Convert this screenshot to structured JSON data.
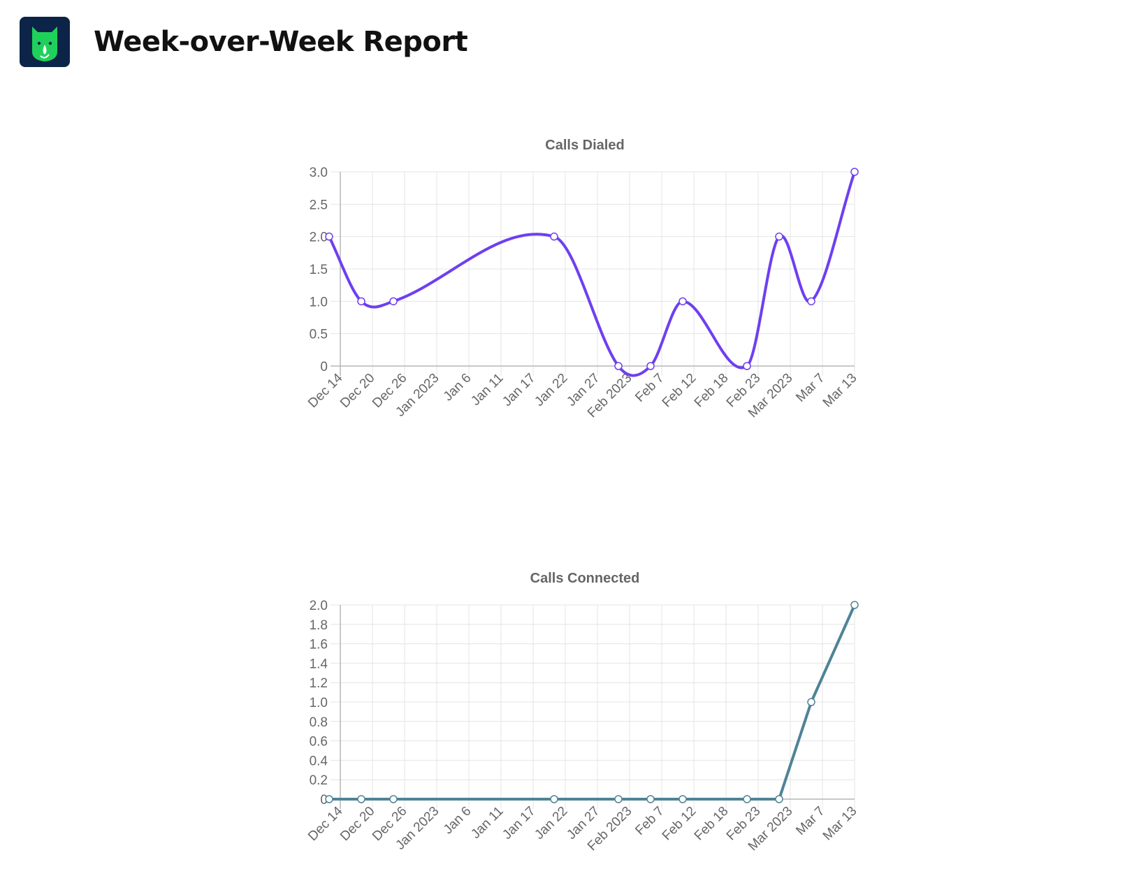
{
  "header": {
    "title": "Week-over-Week Report",
    "logo_icon": "green-mascot-icon"
  },
  "chart_data": [
    {
      "type": "line",
      "title": "Calls Dialed",
      "color": "#6e3ff0",
      "smooth": true,
      "x": [
        "Dec 14",
        "Dec 20",
        "Dec 26",
        "Jan 2023",
        "Jan 6",
        "Jan 11",
        "Jan 17",
        "Jan 22",
        "Jan 27",
        "Feb 2023",
        "Feb 7",
        "Feb 12",
        "Feb 18",
        "Feb 23",
        "Mar 2023",
        "Mar 7",
        "Mar 13"
      ],
      "points": [
        {
          "x": "Dec 14",
          "y": 2
        },
        {
          "x": "Dec 20",
          "y": 1
        },
        {
          "x": "Dec 26",
          "y": 1
        },
        {
          "x": "Jan 22",
          "y": 2
        },
        {
          "x": "Feb 2023",
          "y": 0
        },
        {
          "x": "Feb 7",
          "y": 0
        },
        {
          "x": "Feb 12",
          "y": 1
        },
        {
          "x": "Feb 23",
          "y": 0
        },
        {
          "x": "Mar 2023",
          "y": 2
        },
        {
          "x": "Mar 7",
          "y": 1
        },
        {
          "x": "Mar 13",
          "y": 3
        }
      ],
      "ylim": [
        0,
        3
      ],
      "yticks": [
        "0",
        "0.5",
        "1.0",
        "1.5",
        "2.0",
        "2.5",
        "3.0"
      ],
      "grid": true
    },
    {
      "type": "line",
      "title": "Calls Connected",
      "color": "#4e8496",
      "smooth": false,
      "x": [
        "Dec 14",
        "Dec 20",
        "Dec 26",
        "Jan 2023",
        "Jan 6",
        "Jan 11",
        "Jan 17",
        "Jan 22",
        "Jan 27",
        "Feb 2023",
        "Feb 7",
        "Feb 12",
        "Feb 18",
        "Feb 23",
        "Mar 2023",
        "Mar 7",
        "Mar 13"
      ],
      "points": [
        {
          "x": "Dec 14",
          "y": 0
        },
        {
          "x": "Dec 20",
          "y": 0
        },
        {
          "x": "Dec 26",
          "y": 0
        },
        {
          "x": "Jan 22",
          "y": 0
        },
        {
          "x": "Feb 2023",
          "y": 0
        },
        {
          "x": "Feb 7",
          "y": 0
        },
        {
          "x": "Feb 12",
          "y": 0
        },
        {
          "x": "Feb 23",
          "y": 0
        },
        {
          "x": "Mar 2023",
          "y": 0
        },
        {
          "x": "Mar 7",
          "y": 1
        },
        {
          "x": "Mar 13",
          "y": 2
        }
      ],
      "ylim": [
        0,
        2
      ],
      "yticks": [
        "0",
        "0.2",
        "0.4",
        "0.6",
        "0.8",
        "1.0",
        "1.2",
        "1.4",
        "1.6",
        "1.8",
        "2.0"
      ],
      "grid": true
    }
  ]
}
